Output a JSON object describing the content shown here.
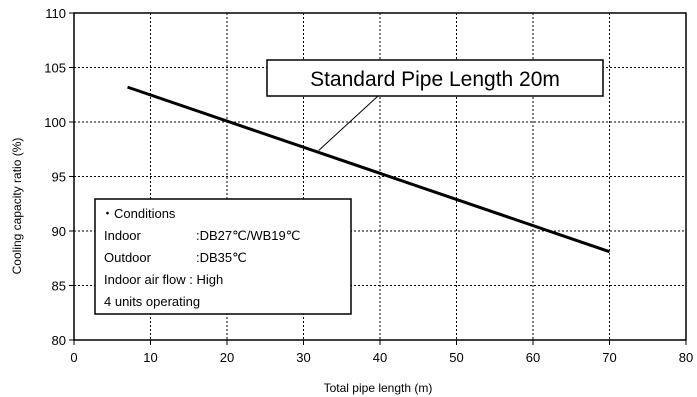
{
  "chart_data": {
    "type": "line",
    "xlabel": "Total pipe length  (m)",
    "ylabel": "Cooling capacity ratio (%)",
    "xlim": [
      0,
      80
    ],
    "ylim": [
      80,
      110
    ],
    "xticks": [
      0,
      10,
      20,
      30,
      40,
      50,
      60,
      70,
      80
    ],
    "yticks": [
      80,
      85,
      90,
      95,
      100,
      105,
      110
    ],
    "grid": true,
    "series": [
      {
        "x": [
          7,
          70
        ],
        "y": [
          103.2,
          88.1
        ]
      }
    ],
    "annotations": [
      {
        "text": "Standard Pipe Length 20m",
        "points_to": {
          "x": 32,
          "y": 97.4
        }
      }
    ],
    "conditions": {
      "heading": "・Conditions",
      "indoor_label": "Indoor",
      "indoor_value": ":DB27℃/WB19℃",
      "outdoor_label": "Outdoor",
      "outdoor_value": ":DB35℃",
      "airflow": "Indoor air flow : High",
      "units": "4 units operating"
    }
  }
}
